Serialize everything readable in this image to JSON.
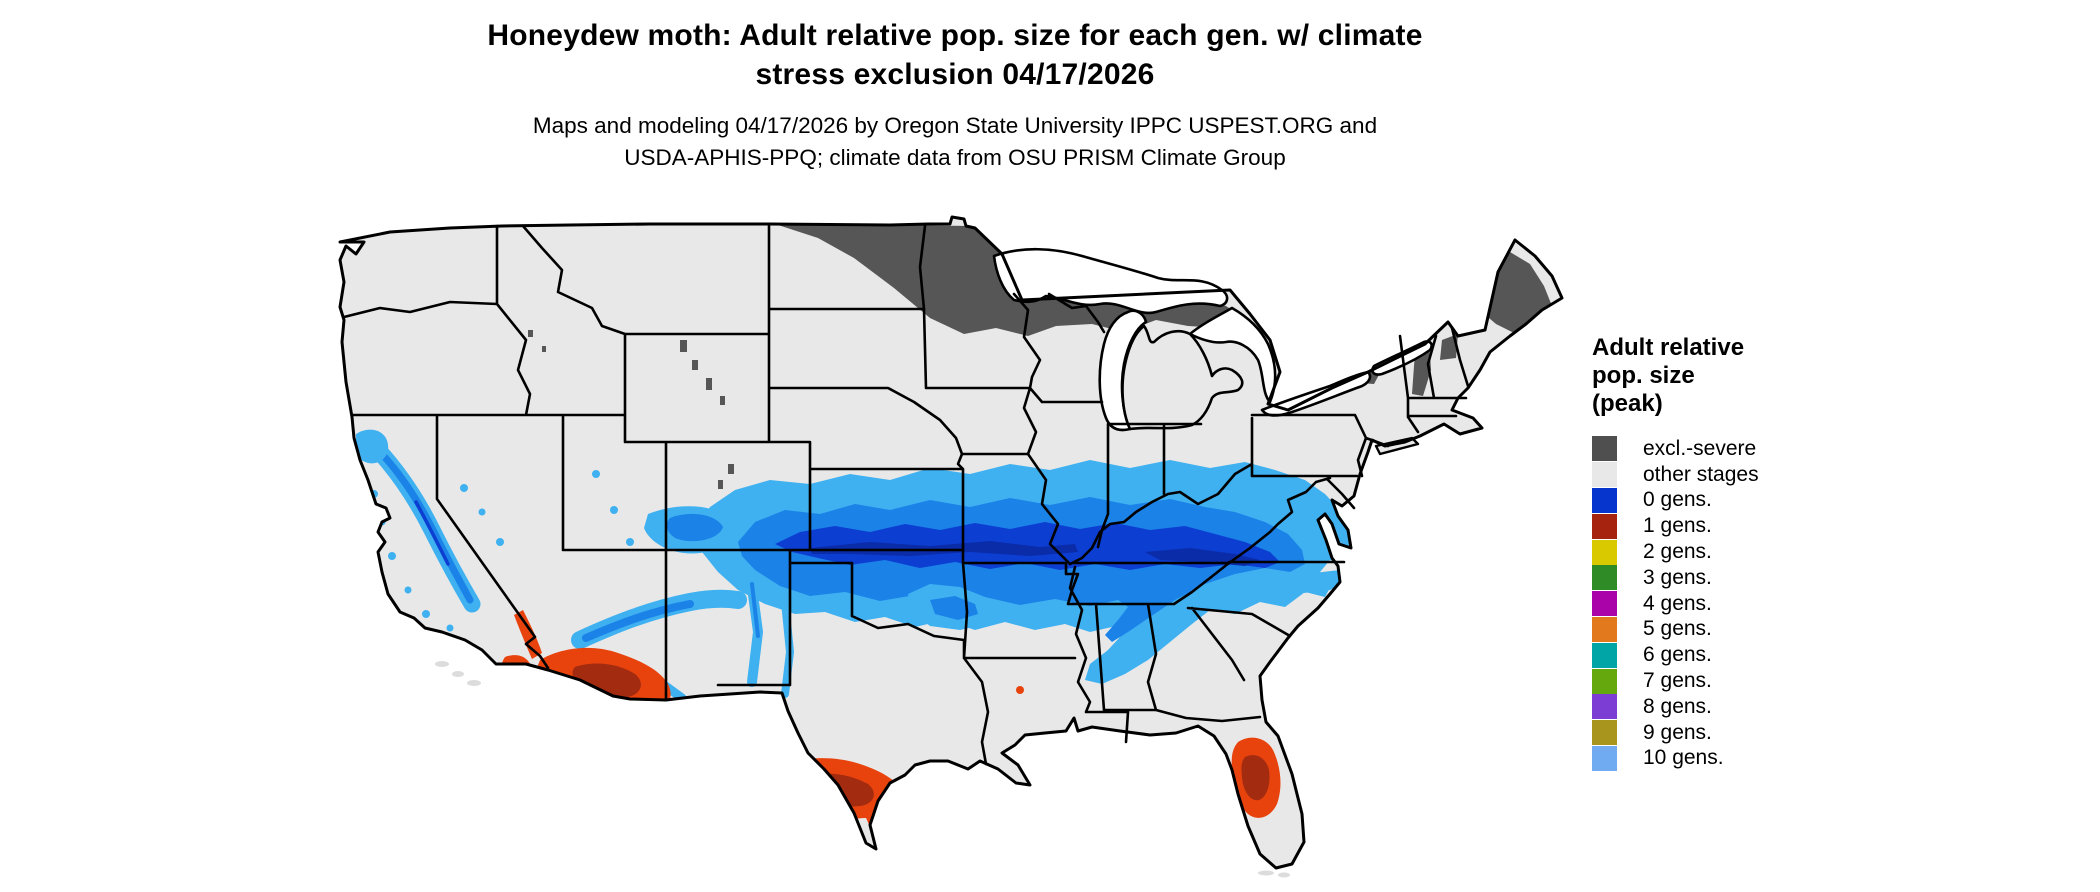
{
  "title": {
    "lines": [
      "Honeydew moth: Adult relative pop. size for each gen. w/ climate",
      "stress exclusion 04/17/2026"
    ]
  },
  "subtitle": {
    "lines": [
      "Maps and modeling 04/17/2026 by Oregon State University IPPC USPEST.ORG and",
      "USDA-APHIS-PPQ; climate data from OSU PRISM Climate Group"
    ]
  },
  "legend": {
    "title": "Adult relative pop. size (peak)",
    "items": [
      {
        "label": "excl.-severe",
        "color": "#4f4f4f"
      },
      {
        "label": "other stages",
        "color": "#e8e8e8"
      },
      {
        "label": "0 gens.",
        "color": "#0535cc"
      },
      {
        "label": "1 gens.",
        "color": "#a6230f"
      },
      {
        "label": "2 gens.",
        "color": "#d9c900"
      },
      {
        "label": "3 gens.",
        "color": "#2e8b25"
      },
      {
        "label": "4 gens.",
        "color": "#a903a9"
      },
      {
        "label": "5 gens.",
        "color": "#e2791c"
      },
      {
        "label": "6 gens.",
        "color": "#01a5a5"
      },
      {
        "label": "7 gens.",
        "color": "#64a80e"
      },
      {
        "label": "8 gens.",
        "color": "#7b3dd3"
      },
      {
        "label": "9 gens.",
        "color": "#a8951d"
      },
      {
        "label": "10 gens.",
        "color": "#70aaf0"
      }
    ]
  },
  "map": {
    "description": "Continental US raster map of honeydew moth adult relative population size",
    "palette": {
      "land": "#e8e8e8",
      "border": "#000000",
      "excl": "#565656",
      "blue_light": "#3fb1f0",
      "blue_mid": "#1b82e8",
      "blue_deep": "#0d3ed2",
      "blue_core": "#0a2ca8",
      "red": "#e8430d",
      "red_dark": "#a32b10",
      "island": "#dcdcdc"
    },
    "regions": {
      "excluded_north": "northern ND / MN / WI / upper MI",
      "excluded_northeast": "interior Maine, Adirondacks, Green and White Mountains",
      "population_band": "central band KS-MO-IL-IN-KY-VA to Atlantic coast",
      "mountain_west": "Sierra Nevada, Mogollon Rim, southern Rockies",
      "hot_exclusion_zones": "southern Arizona, south Texas, central Florida"
    }
  }
}
